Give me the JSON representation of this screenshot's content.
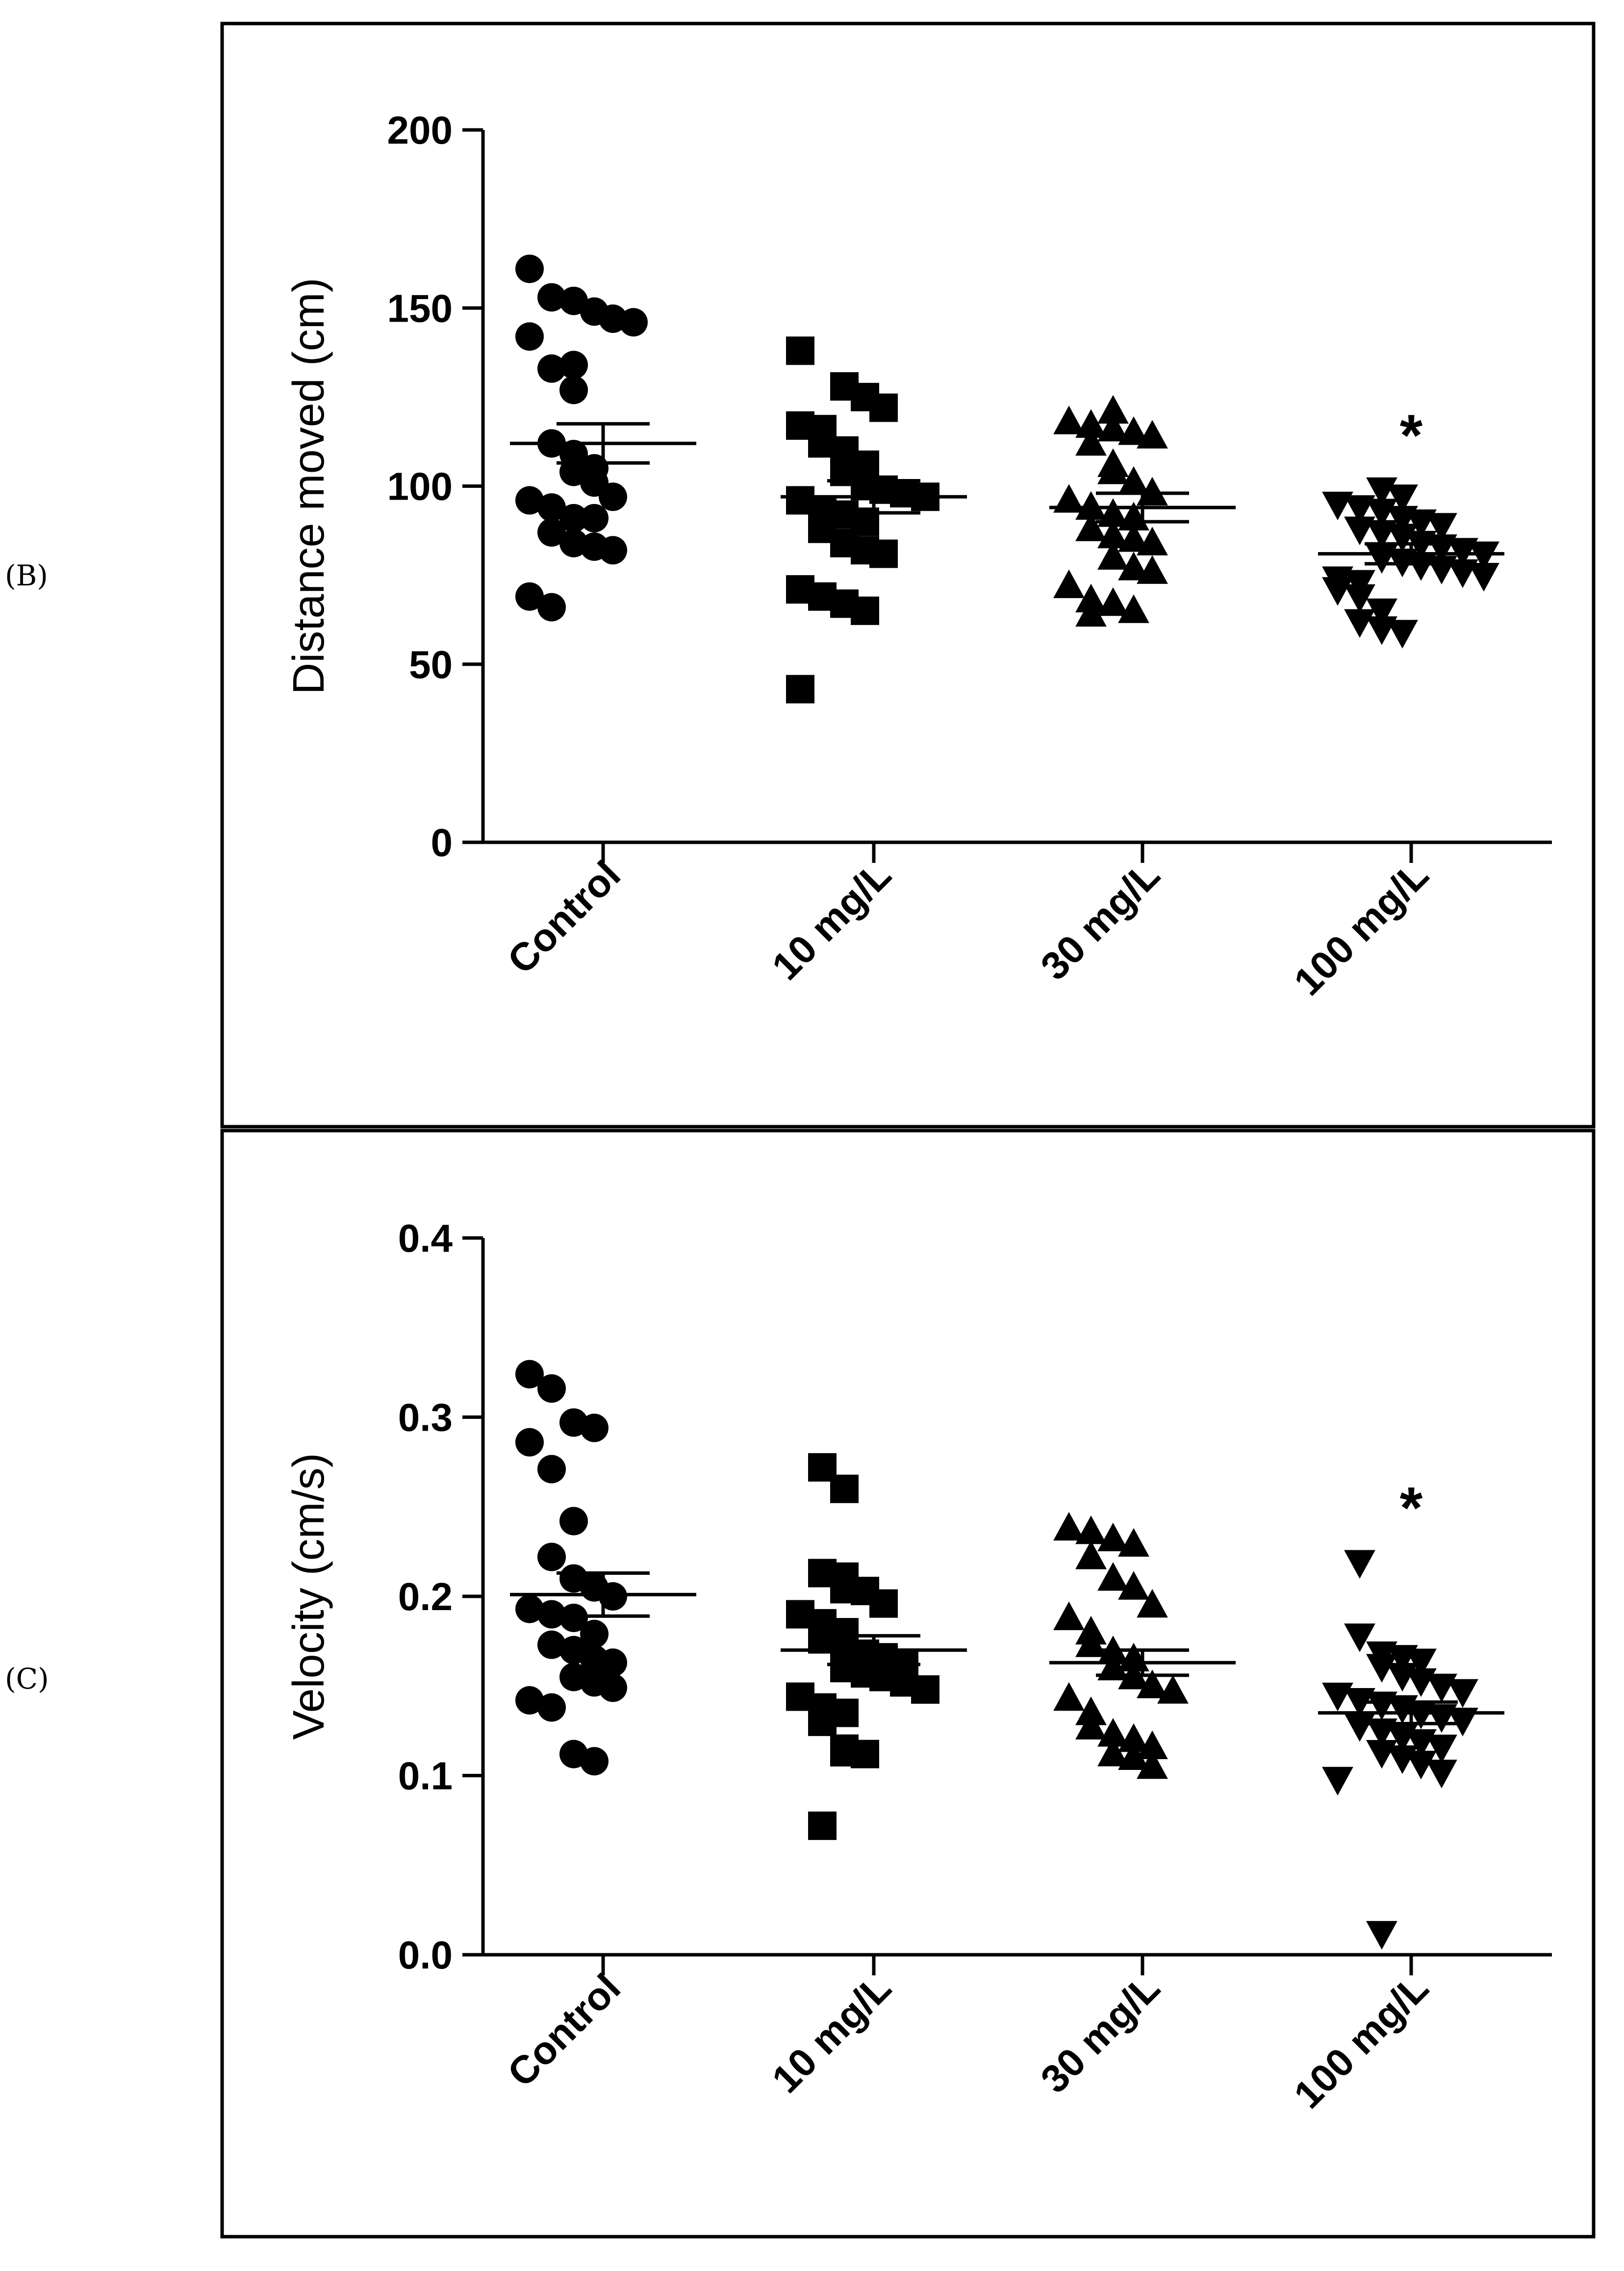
{
  "panels": [
    {
      "letter": "(B)"
    },
    {
      "letter": "(C)"
    }
  ],
  "chart_data": [
    {
      "type": "scatter",
      "title": "",
      "xlabel": "",
      "ylabel": "Distance moved (cm)",
      "ylim": [
        0,
        200
      ],
      "yticks": [
        "0",
        "50",
        "100",
        "150",
        "200"
      ],
      "categories": [
        "Control",
        "10 mg/L",
        "30 mg/L",
        "100 mg/L"
      ],
      "markers": [
        "circle",
        "square",
        "triangle-up",
        "triangle-down"
      ],
      "grid": false,
      "legend": "none",
      "series": [
        {
          "values": [
            161,
            153,
            152,
            149,
            147,
            146,
            142,
            133,
            134,
            127,
            112,
            109,
            105,
            104,
            101,
            97,
            96,
            94,
            91,
            91,
            87,
            84,
            83,
            82,
            69,
            66
          ],
          "mean": 112,
          "sem": 5.5
        },
        {
          "values": [
            138,
            128,
            125,
            122,
            117,
            116,
            112,
            110,
            106,
            104,
            100,
            99,
            98,
            97,
            96,
            93,
            92,
            90,
            88,
            84,
            82,
            81,
            71,
            69,
            67,
            65,
            43
          ],
          "mean": 97,
          "sem": 4.5
        },
        {
          "values": [
            121,
            118,
            117,
            116,
            115,
            114,
            112,
            106,
            104,
            101,
            98,
            96,
            94,
            92,
            91,
            88,
            86,
            85,
            84,
            80,
            77,
            76,
            72,
            68,
            67,
            65,
            64
          ],
          "mean": 94,
          "sem": 4
        },
        {
          "values": [
            99,
            97,
            95,
            94,
            93,
            91,
            90,
            89,
            88,
            87,
            86,
            84,
            83,
            82,
            81,
            80,
            79,
            78,
            77,
            76,
            75,
            74,
            73,
            71,
            69,
            65,
            62,
            60,
            59
          ],
          "mean": 81,
          "sem": 2.8,
          "annotation": "*"
        }
      ]
    },
    {
      "type": "scatter",
      "title": "",
      "xlabel": "",
      "ylabel": "Velocity (cm/s)",
      "ylim": [
        0,
        0.4
      ],
      "yticks": [
        "0.0",
        "0.1",
        "0.2",
        "0.3",
        "0.4"
      ],
      "categories": [
        "Control",
        "10 mg/L",
        "30 mg/L",
        "100 mg/L"
      ],
      "markers": [
        "circle",
        "square",
        "triangle-up",
        "triangle-down"
      ],
      "grid": false,
      "legend": "none",
      "series": [
        {
          "values": [
            0.324,
            0.316,
            0.297,
            0.294,
            0.286,
            0.271,
            0.242,
            0.222,
            0.21,
            0.205,
            0.2,
            0.193,
            0.19,
            0.188,
            0.179,
            0.173,
            0.17,
            0.165,
            0.163,
            0.155,
            0.152,
            0.149,
            0.142,
            0.138,
            0.112,
            0.108
          ],
          "mean": 0.201,
          "sem": 0.012
        },
        {
          "values": [
            0.272,
            0.26,
            0.213,
            0.211,
            0.204,
            0.203,
            0.196,
            0.19,
            0.185,
            0.18,
            0.176,
            0.172,
            0.168,
            0.166,
            0.163,
            0.16,
            0.157,
            0.155,
            0.152,
            0.148,
            0.144,
            0.138,
            0.135,
            0.13,
            0.115,
            0.113,
            0.112,
            0.072
          ],
          "mean": 0.17,
          "sem": 0.008
        },
        {
          "values": [
            0.238,
            0.236,
            0.232,
            0.229,
            0.222,
            0.21,
            0.205,
            0.195,
            0.188,
            0.18,
            0.173,
            0.169,
            0.165,
            0.16,
            0.155,
            0.15,
            0.147,
            0.143,
            0.135,
            0.127,
            0.123,
            0.12,
            0.116,
            0.112,
            0.11,
            0.105
          ],
          "mean": 0.163,
          "sem": 0.007
        },
        {
          "values": [
            0.219,
            0.178,
            0.168,
            0.166,
            0.164,
            0.161,
            0.156,
            0.153,
            0.15,
            0.147,
            0.145,
            0.142,
            0.14,
            0.138,
            0.135,
            0.133,
            0.131,
            0.128,
            0.125,
            0.122,
            0.119,
            0.116,
            0.113,
            0.11,
            0.107,
            0.102,
            0.098,
            0.012
          ],
          "mean": 0.135,
          "sem": 0.006,
          "annotation": "*"
        }
      ]
    }
  ]
}
